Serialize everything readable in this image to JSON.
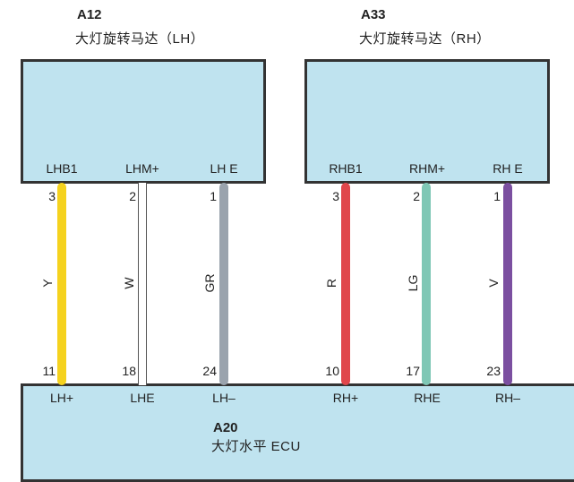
{
  "components": {
    "a12": {
      "id": "A12",
      "name": "大灯旋转马达（LH）"
    },
    "a33": {
      "id": "A33",
      "name": "大灯旋转马达（RH）"
    },
    "a20": {
      "id": "A20",
      "name": "大灯水平 ECU"
    }
  },
  "a12_pins": [
    {
      "label": "LHB1",
      "num": "3"
    },
    {
      "label": "LHM+",
      "num": "2"
    },
    {
      "label": "LH E",
      "num": "1"
    }
  ],
  "a33_pins": [
    {
      "label": "RHB1",
      "num": "3"
    },
    {
      "label": "RHM+",
      "num": "2"
    },
    {
      "label": "RH E",
      "num": "1"
    }
  ],
  "a20_pins": [
    {
      "label": "LH+",
      "num": "11"
    },
    {
      "label": "LHE",
      "num": "18"
    },
    {
      "label": "LH–",
      "num": "24"
    },
    {
      "label": "RH+",
      "num": "10"
    },
    {
      "label": "RHE",
      "num": "17"
    },
    {
      "label": "RH–",
      "num": "23"
    }
  ],
  "wires": [
    {
      "code": "Y",
      "color": "#f5d21e"
    },
    {
      "code": "W",
      "color": "#ffffff"
    },
    {
      "code": "GR",
      "color": "#9aa3ad"
    },
    {
      "code": "R",
      "color": "#e0474c"
    },
    {
      "code": "LG",
      "color": "#7fc7b5"
    },
    {
      "code": "V",
      "color": "#7b4fa0"
    }
  ]
}
